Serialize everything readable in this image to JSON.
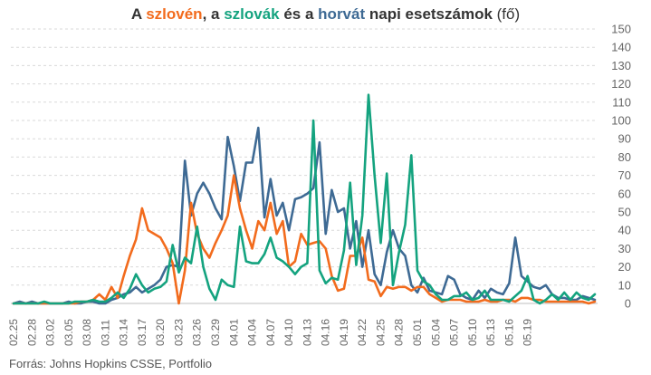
{
  "title": {
    "part_a": "A ",
    "slo": "szlovén",
    "part_b": ", a ",
    "sk": "szlovák",
    "part_c": " és a ",
    "hr": "horvát",
    "part_d": " napi esetszámok",
    "unit": " (fő)"
  },
  "source": "Forrás: Johns Hopkins CSSE, Portfolio",
  "chart_data": {
    "type": "line",
    "title": "A szlovén, a szlovák és a horvát napi esetszámok (fő)",
    "xlabel": "",
    "ylabel": "",
    "ylim": [
      0,
      150
    ],
    "yticks": [
      0,
      10,
      20,
      30,
      40,
      50,
      60,
      70,
      80,
      90,
      100,
      110,
      120,
      130,
      140,
      150
    ],
    "grid": true,
    "legend": "none",
    "x_tick_labels": [
      "02.25",
      "02.28",
      "03.02",
      "03.05",
      "03.08",
      "03.11",
      "03.14",
      "03.17",
      "03.20",
      "03.23",
      "03.26",
      "03.29",
      "04.01",
      "04.04",
      "04.07",
      "04.10",
      "04.13",
      "04.16",
      "04.19",
      "04.22",
      "04.25",
      "04.28",
      "05.01",
      "05.04",
      "05.07",
      "05.10",
      "05.13",
      "05.16",
      "05.19"
    ],
    "x_start": "02.25",
    "x_end": "05.23",
    "series": [
      {
        "name": "horvát",
        "color": "#3e6a94",
        "values": [
          0,
          1,
          0,
          1,
          0,
          0,
          0,
          0,
          0,
          1,
          0,
          0,
          1,
          1,
          0,
          0,
          2,
          3,
          5,
          6,
          9,
          6,
          8,
          10,
          13,
          20,
          21,
          20,
          78,
          48,
          60,
          66,
          60,
          52,
          46,
          91,
          75,
          56,
          77,
          77,
          96,
          47,
          68,
          48,
          55,
          40,
          57,
          58,
          60,
          63,
          88,
          38,
          62,
          50,
          52,
          30,
          45,
          20,
          40,
          16,
          10,
          28,
          40,
          30,
          26,
          10,
          6,
          14,
          7,
          6,
          5,
          15,
          13,
          5,
          3,
          2,
          7,
          3,
          8,
          6,
          5,
          11,
          36,
          15,
          12,
          9,
          8,
          10,
          5,
          3,
          3,
          2,
          2,
          4,
          3,
          2
        ]
      },
      {
        "name": "szlovén",
        "color": "#f26b1d",
        "values": [
          0,
          0,
          0,
          0,
          0,
          0,
          0,
          0,
          0,
          0,
          0,
          1,
          1,
          2,
          5,
          2,
          9,
          3,
          15,
          26,
          35,
          52,
          40,
          38,
          36,
          30,
          22,
          0,
          18,
          55,
          38,
          30,
          25,
          33,
          40,
          48,
          70,
          52,
          40,
          30,
          45,
          40,
          55,
          38,
          45,
          20,
          23,
          38,
          32,
          33,
          34,
          30,
          15,
          7,
          8,
          26,
          26,
          36,
          13,
          12,
          4,
          9,
          8,
          9,
          9,
          7,
          9,
          9,
          5,
          3,
          1,
          2,
          2,
          2,
          1,
          1,
          1,
          2,
          1,
          1,
          2,
          2,
          1,
          3,
          3,
          2,
          2,
          1,
          1,
          1,
          1,
          1,
          1,
          1,
          0,
          1
        ]
      },
      {
        "name": "szlovák",
        "color": "#14a37f",
        "values": [
          0,
          0,
          0,
          0,
          0,
          1,
          0,
          0,
          0,
          0,
          1,
          1,
          1,
          2,
          1,
          1,
          3,
          6,
          3,
          8,
          16,
          10,
          6,
          8,
          9,
          12,
          32,
          17,
          25,
          22,
          42,
          20,
          8,
          2,
          13,
          10,
          9,
          42,
          23,
          22,
          22,
          27,
          36,
          25,
          23,
          20,
          16,
          20,
          22,
          100,
          18,
          11,
          14,
          13,
          29,
          66,
          21,
          48,
          114,
          70,
          33,
          71,
          10,
          28,
          43,
          81,
          18,
          12,
          10,
          5,
          2,
          2,
          4,
          4,
          6,
          2,
          3,
          7,
          2,
          2,
          2,
          1,
          4,
          7,
          15,
          2,
          0,
          2,
          5,
          2,
          6,
          2,
          6,
          3,
          2,
          5
        ]
      }
    ]
  }
}
